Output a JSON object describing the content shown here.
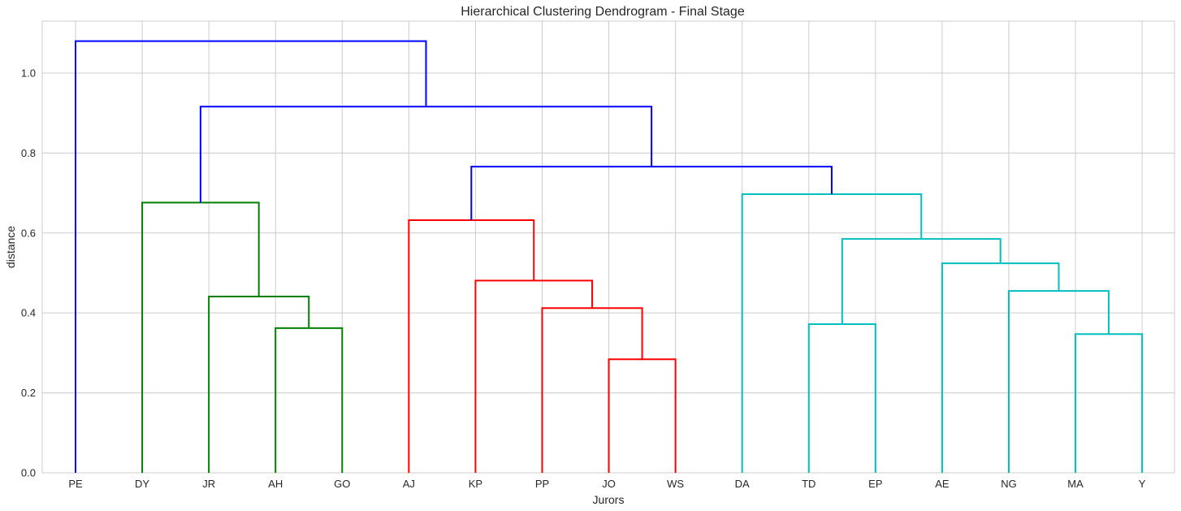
{
  "chart_data": {
    "type": "dendrogram",
    "title": "Hierarchical Clustering Dendrogram - Final Stage",
    "xlabel": "Jurors",
    "ylabel": "distance",
    "ylim": [
      0,
      1.13
    ],
    "yticks": [
      "0.0",
      "0.2",
      "0.4",
      "0.6",
      "0.8",
      "1.0"
    ],
    "grid": true,
    "leaves": [
      "PE",
      "DY",
      "JR",
      "AH",
      "GO",
      "AJ",
      "KP",
      "PP",
      "JO",
      "WS",
      "DA",
      "TD",
      "EP",
      "AE",
      "NG",
      "MA",
      "Y"
    ],
    "colors": {
      "above_threshold": "#0000ff",
      "cluster_green": "#008000",
      "cluster_red": "#ff0000",
      "cluster_cyan": "#00bfbf"
    },
    "merges": [
      {
        "left": "AH",
        "right": "GO",
        "distance": 0.362,
        "color": "cluster_green"
      },
      {
        "left": "JR",
        "right": "(AH,GO)",
        "distance": 0.441,
        "color": "cluster_green"
      },
      {
        "left": "DY",
        "right": "(JR,AH,GO)",
        "distance": 0.676,
        "color": "cluster_green"
      },
      {
        "left": "JO",
        "right": "WS",
        "distance": 0.284,
        "color": "cluster_red"
      },
      {
        "left": "PP",
        "right": "(JO,WS)",
        "distance": 0.412,
        "color": "cluster_red"
      },
      {
        "left": "KP",
        "right": "(PP,JO,WS)",
        "distance": 0.481,
        "color": "cluster_red"
      },
      {
        "left": "AJ",
        "right": "(KP,PP,JO,WS)",
        "distance": 0.632,
        "color": "cluster_red"
      },
      {
        "left": "MA",
        "right": "Y",
        "distance": 0.347,
        "color": "cluster_cyan"
      },
      {
        "left": "NG",
        "right": "(MA,Y)",
        "distance": 0.455,
        "color": "cluster_cyan"
      },
      {
        "left": "AE",
        "right": "(NG,MA,Y)",
        "distance": 0.524,
        "color": "cluster_cyan"
      },
      {
        "left": "TD",
        "right": "EP",
        "distance": 0.372,
        "color": "cluster_cyan"
      },
      {
        "left": "(TD,EP)",
        "right": "(AE,NG,MA,Y)",
        "distance": 0.585,
        "color": "cluster_cyan"
      },
      {
        "left": "DA",
        "right": "(TD,EP,AE,NG,MA,Y)",
        "distance": 0.697,
        "color": "cluster_cyan"
      },
      {
        "left": "(AJ,KP,PP,JO,WS)",
        "right": "(DA,TD,EP,AE,NG,MA,Y)",
        "distance": 0.766,
        "color": "above_threshold"
      },
      {
        "left": "(DY,JR,AH,GO)",
        "right": "(AJ..Y)",
        "distance": 0.916,
        "color": "above_threshold"
      },
      {
        "left": "PE",
        "right": "(DY..Y)",
        "distance": 1.08,
        "color": "above_threshold"
      }
    ]
  }
}
